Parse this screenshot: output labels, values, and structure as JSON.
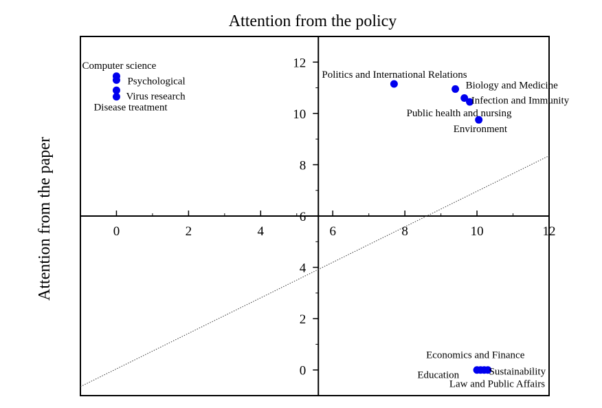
{
  "chart_data": {
    "type": "scatter",
    "title": "Attention from the policy",
    "xlabel": "Attention from the policy",
    "ylabel": "Attention from the paper",
    "xlim": [
      -1,
      12
    ],
    "ylim": [
      -1,
      13
    ],
    "quadrant_origin": {
      "x": 5.6,
      "y": 6
    },
    "xticks": [
      0,
      2,
      4,
      6,
      8,
      10,
      12
    ],
    "yticks": [
      0,
      2,
      4,
      6,
      8,
      10,
      12
    ],
    "marker_color": "#0000ee",
    "points": [
      {
        "label": "Computer science",
        "x": 0,
        "y": 11.45
      },
      {
        "label": "Psychological",
        "x": 0,
        "y": 11.3
      },
      {
        "label": "Virus research",
        "x": 0,
        "y": 10.9
      },
      {
        "label": "Disease treatment",
        "x": 0,
        "y": 10.65
      },
      {
        "label": "Politics and International Relations",
        "x": 7.7,
        "y": 11.15
      },
      {
        "label": "Biology and Medicine",
        "x": 9.4,
        "y": 10.95
      },
      {
        "label": "Infection and Immunity",
        "x": 9.65,
        "y": 10.6
      },
      {
        "label": "Public health and nursing",
        "x": 9.8,
        "y": 10.45
      },
      {
        "label": "Environment",
        "x": 10.05,
        "y": 9.75
      },
      {
        "label": "Economics and Finance",
        "x": 10.0,
        "y": 0
      },
      {
        "label": "Education",
        "x": 10.1,
        "y": 0
      },
      {
        "label": "Sustainability",
        "x": 10.2,
        "y": 0
      },
      {
        "label": "Law and Public Affairs",
        "x": 10.3,
        "y": 0
      }
    ],
    "trend_line": {
      "x": [
        -1,
        12
      ],
      "y": [
        -0.65,
        8.35
      ],
      "style": "dotted"
    }
  }
}
